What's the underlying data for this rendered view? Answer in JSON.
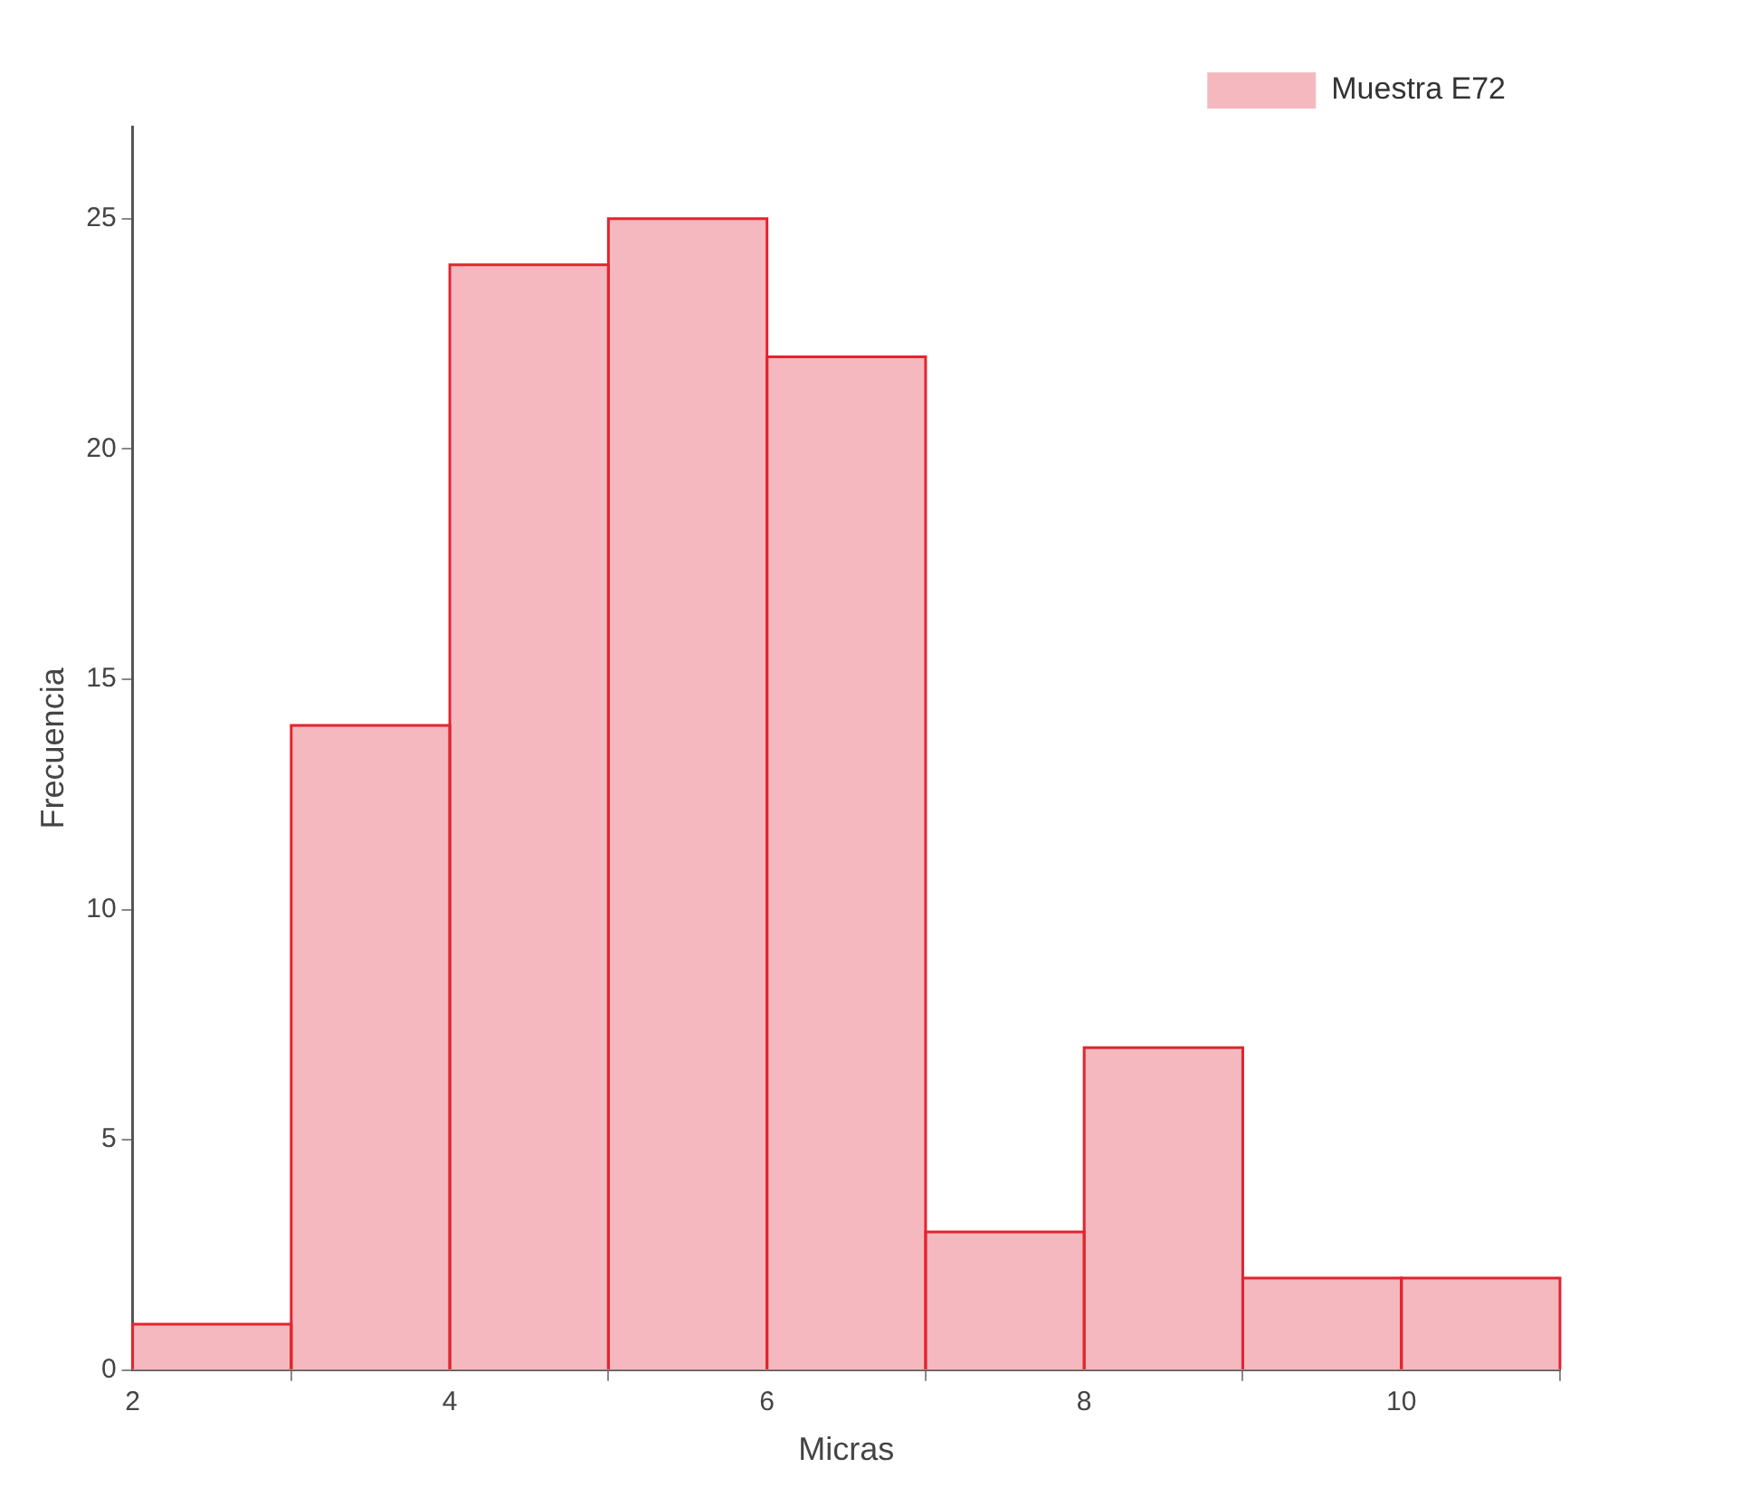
{
  "chart_data": {
    "type": "histogram",
    "xlabel": "Micras",
    "ylabel": "Frecuencia",
    "bins": [
      2,
      3,
      4,
      5,
      6,
      7,
      8,
      9,
      10,
      11
    ],
    "series": [
      {
        "name": "Muestra E72",
        "color": "#f5b8be",
        "values": [
          1,
          14,
          24,
          25,
          22,
          3,
          7,
          2,
          2
        ]
      }
    ],
    "xlim": [
      2,
      11
    ],
    "xticks": [
      2,
      4,
      6,
      8,
      10
    ],
    "ylim": [
      0,
      27
    ],
    "yticks": [
      0,
      5,
      10,
      15,
      20,
      25
    ],
    "grid": false,
    "legend": "top right"
  }
}
